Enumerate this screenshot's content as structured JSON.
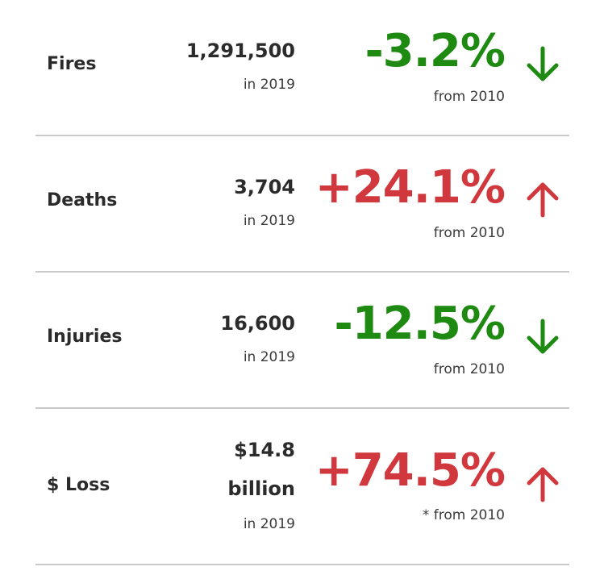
{
  "colors": {
    "decrease": "#1e8a12",
    "increase": "#d1383d",
    "divider": "#c9c9c9",
    "text": "#2b2b2b"
  },
  "rows": [
    {
      "label": "Fires",
      "count": "1,291,500",
      "year_text": "in 2019",
      "change": "-3.2%",
      "change_text": "from 2010",
      "direction": "down",
      "icon": "arrow-down-icon"
    },
    {
      "label": "Deaths",
      "count": "3,704",
      "year_text": "in 2019",
      "change": "+24.1%",
      "change_text": "from 2010",
      "direction": "up",
      "icon": "arrow-up-icon"
    },
    {
      "label": "Injuries",
      "count": "16,600",
      "year_text": "in 2019",
      "change": "-12.5%",
      "change_text": "from 2010",
      "direction": "down",
      "icon": "arrow-down-icon"
    },
    {
      "label": "$ Loss",
      "count_line1": "$14.8",
      "count_line2": "billion",
      "year_text": "in 2019",
      "change": "+74.5%",
      "change_text": "* from 2010",
      "direction": "up",
      "icon": "arrow-up-icon"
    }
  ]
}
